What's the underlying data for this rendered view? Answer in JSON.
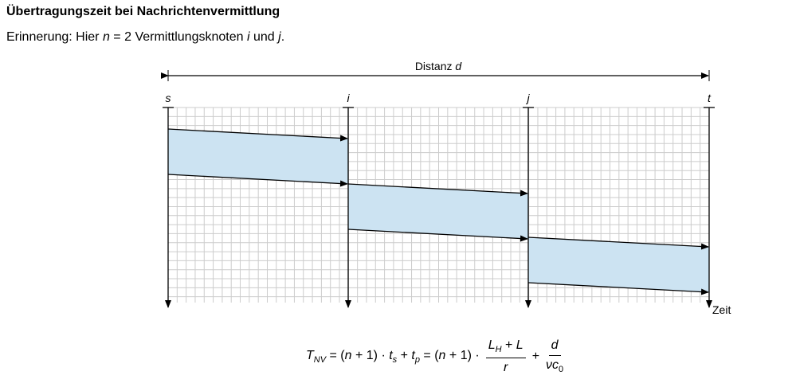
{
  "header": {
    "title": "Übertragungszeit bei Nachrichtenvermittlung",
    "subtitle": [
      {
        "t": "Erinnerung: Hier "
      },
      {
        "t": "n",
        "i": true
      },
      {
        "t": " = 2 Vermittlungsknoten "
      },
      {
        "t": "i",
        "i": true
      },
      {
        "t": " und "
      },
      {
        "t": "j",
        "i": true
      },
      {
        "t": "."
      }
    ]
  },
  "diagram": {
    "distance": [
      {
        "t": "Distanz "
      },
      {
        "t": "d",
        "i": true
      }
    ],
    "nodes": [
      "s",
      "i",
      "j",
      "t"
    ],
    "time_axis": "Zeit"
  },
  "formula": {
    "main": [
      {
        "t": "T",
        "i": true
      },
      {
        "t": "NV",
        "i": true,
        "sub": true
      },
      {
        "t": " = ("
      },
      {
        "t": "n",
        "i": true
      },
      {
        "t": " + 1) · "
      },
      {
        "t": "t",
        "i": true
      },
      {
        "t": "s",
        "i": true,
        "sub": true
      },
      {
        "t": " + "
      },
      {
        "t": "t",
        "i": true
      },
      {
        "t": "p",
        "i": true,
        "sub": true
      },
      {
        "t": " = ("
      },
      {
        "t": "n",
        "i": true
      },
      {
        "t": " + 1) ·"
      }
    ],
    "fraction1": {
      "numerator": [
        {
          "t": "L",
          "i": true
        },
        {
          "t": "H",
          "i": true,
          "sub": true
        },
        {
          "t": " + "
        },
        {
          "t": "L",
          "i": true
        }
      ],
      "denominator": [
        {
          "t": "r",
          "i": true
        }
      ]
    },
    "plus": [
      {
        "t": "+"
      }
    ],
    "fraction2": {
      "numerator": [
        {
          "t": "d",
          "i": true
        }
      ],
      "denominator": [
        {
          "t": "ν",
          "i": true
        },
        {
          "t": "c",
          "i": true
        },
        {
          "t": "0",
          "sub": true
        }
      ]
    }
  }
}
